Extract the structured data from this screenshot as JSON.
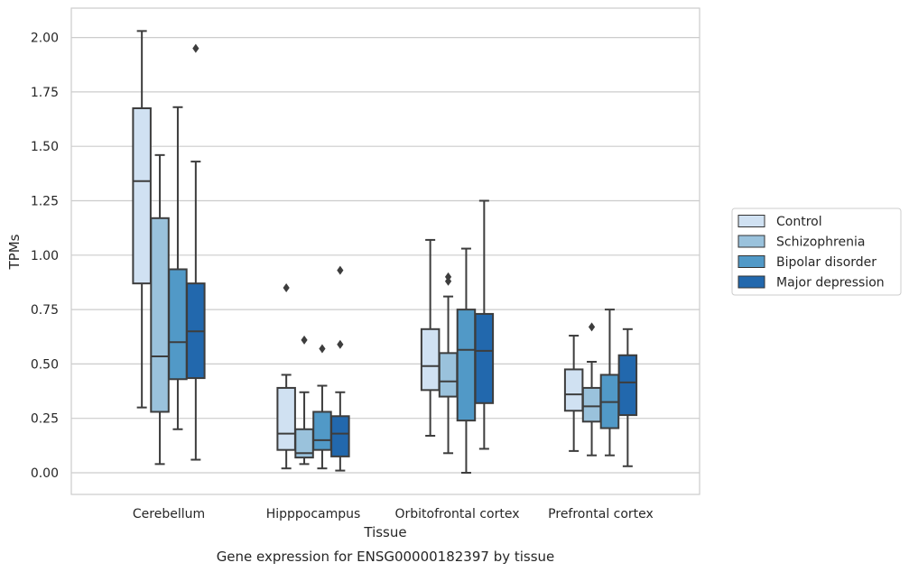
{
  "chart_data": {
    "type": "box",
    "title": "",
    "caption": "Gene expression for ENSG00000182397 by tissue",
    "xlabel": "Tissue",
    "ylabel": "TPMs",
    "ylim": [
      -0.1,
      2.13
    ],
    "yticks": [
      "0.00",
      "0.25",
      "0.50",
      "0.75",
      "1.00",
      "1.25",
      "1.50",
      "1.75",
      "2.00"
    ],
    "categories": [
      "Cerebellum",
      "Hipppocampus",
      "Orbitofrontal cortex",
      "Prefrontal cortex"
    ],
    "grid": "horizontal",
    "legend_position": "right",
    "series": [
      {
        "name": "Control",
        "color": "#d0e1f2",
        "boxes": [
          {
            "whisker_low": 0.3,
            "q1": 0.87,
            "median": 1.34,
            "q3": 1.675,
            "whisker_high": 2.03,
            "outliers": []
          },
          {
            "whisker_low": 0.02,
            "q1": 0.105,
            "median": 0.18,
            "q3": 0.39,
            "whisker_high": 0.45,
            "outliers": [
              0.85
            ]
          },
          {
            "whisker_low": 0.17,
            "q1": 0.38,
            "median": 0.49,
            "q3": 0.66,
            "whisker_high": 1.07,
            "outliers": []
          },
          {
            "whisker_low": 0.1,
            "q1": 0.285,
            "median": 0.36,
            "q3": 0.475,
            "whisker_high": 0.63,
            "outliers": []
          }
        ]
      },
      {
        "name": "Schizophrenia",
        "color": "#9ac2dc",
        "boxes": [
          {
            "whisker_low": 0.04,
            "q1": 0.28,
            "median": 0.535,
            "q3": 1.17,
            "whisker_high": 1.46,
            "outliers": []
          },
          {
            "whisker_low": 0.04,
            "q1": 0.07,
            "median": 0.09,
            "q3": 0.2,
            "whisker_high": 0.37,
            "outliers": [
              0.61
            ]
          },
          {
            "whisker_low": 0.09,
            "q1": 0.35,
            "median": 0.42,
            "q3": 0.55,
            "whisker_high": 0.81,
            "outliers": [
              0.88,
              0.9
            ]
          },
          {
            "whisker_low": 0.08,
            "q1": 0.235,
            "median": 0.305,
            "q3": 0.39,
            "whisker_high": 0.51,
            "outliers": [
              0.67
            ]
          }
        ]
      },
      {
        "name": "Bipolar disorder",
        "color": "#5199c7",
        "boxes": [
          {
            "whisker_low": 0.2,
            "q1": 0.43,
            "median": 0.6,
            "q3": 0.935,
            "whisker_high": 1.68,
            "outliers": []
          },
          {
            "whisker_low": 0.02,
            "q1": 0.105,
            "median": 0.15,
            "q3": 0.28,
            "whisker_high": 0.4,
            "outliers": [
              0.57
            ]
          },
          {
            "whisker_low": 0.0,
            "q1": 0.24,
            "median": 0.565,
            "q3": 0.75,
            "whisker_high": 1.03,
            "outliers": []
          },
          {
            "whisker_low": 0.08,
            "q1": 0.205,
            "median": 0.325,
            "q3": 0.45,
            "whisker_high": 0.75,
            "outliers": []
          }
        ]
      },
      {
        "name": "Major depression",
        "color": "#2268ad",
        "boxes": [
          {
            "whisker_low": 0.06,
            "q1": 0.435,
            "median": 0.65,
            "q3": 0.87,
            "whisker_high": 1.43,
            "outliers": [
              1.95
            ]
          },
          {
            "whisker_low": 0.01,
            "q1": 0.075,
            "median": 0.18,
            "q3": 0.26,
            "whisker_high": 0.37,
            "outliers": [
              0.59,
              0.93
            ]
          },
          {
            "whisker_low": 0.11,
            "q1": 0.32,
            "median": 0.56,
            "q3": 0.73,
            "whisker_high": 1.25,
            "outliers": []
          },
          {
            "whisker_low": 0.03,
            "q1": 0.265,
            "median": 0.415,
            "q3": 0.54,
            "whisker_high": 0.66,
            "outliers": []
          }
        ]
      }
    ]
  }
}
